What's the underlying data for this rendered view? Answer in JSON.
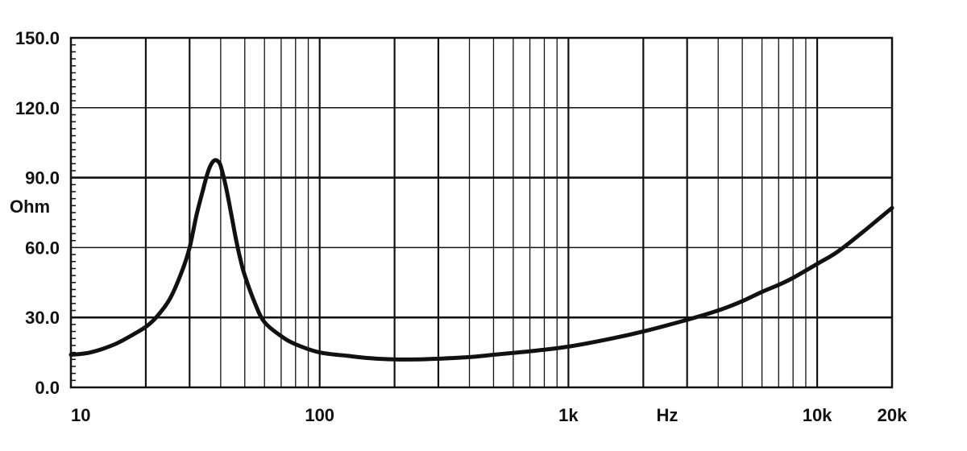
{
  "chart_data": {
    "type": "line",
    "xscale": "log",
    "xlim": [
      10,
      20000
    ],
    "ylim": [
      0,
      150
    ],
    "xlabel": "Hz",
    "ylabel": "Ohm",
    "grid": true,
    "x_ticks": [
      {
        "value": 10,
        "label": "10"
      },
      {
        "value": 100,
        "label": "100"
      },
      {
        "value": 1000,
        "label": "1k"
      },
      {
        "value": 10000,
        "label": "10k"
      },
      {
        "value": 20000,
        "label": "20k"
      }
    ],
    "y_ticks": [
      {
        "value": 0,
        "label": "0.0"
      },
      {
        "value": 30,
        "label": "30.0"
      },
      {
        "value": 60,
        "label": "60.0"
      },
      {
        "value": 90,
        "label": "90.0"
      },
      {
        "value": 120,
        "label": "120.0"
      },
      {
        "value": 150,
        "label": "150.0"
      }
    ],
    "series": [
      {
        "points": [
          [
            10,
            14
          ],
          [
            12,
            15
          ],
          [
            15,
            18.5
          ],
          [
            18,
            23
          ],
          [
            20,
            26
          ],
          [
            22,
            30
          ],
          [
            25,
            38
          ],
          [
            28,
            50
          ],
          [
            30,
            60
          ],
          [
            32,
            74
          ],
          [
            34,
            85
          ],
          [
            35,
            90
          ],
          [
            36,
            94
          ],
          [
            37,
            96.5
          ],
          [
            38,
            97.5
          ],
          [
            39,
            97
          ],
          [
            40,
            95
          ],
          [
            42,
            86
          ],
          [
            44,
            75
          ],
          [
            46,
            64
          ],
          [
            48,
            55
          ],
          [
            50,
            48
          ],
          [
            55,
            36
          ],
          [
            60,
            28
          ],
          [
            70,
            22
          ],
          [
            80,
            18.5
          ],
          [
            100,
            15
          ],
          [
            130,
            13.5
          ],
          [
            160,
            12.5
          ],
          [
            200,
            12
          ],
          [
            250,
            12
          ],
          [
            300,
            12.3
          ],
          [
            400,
            13
          ],
          [
            500,
            14
          ],
          [
            700,
            15.5
          ],
          [
            1000,
            17.5
          ],
          [
            1500,
            21
          ],
          [
            2000,
            24
          ],
          [
            3000,
            29
          ],
          [
            4000,
            33
          ],
          [
            5000,
            37
          ],
          [
            6000,
            41
          ],
          [
            7000,
            44
          ],
          [
            8000,
            47
          ],
          [
            10000,
            53
          ],
          [
            12000,
            58
          ],
          [
            15000,
            66
          ],
          [
            18000,
            73
          ],
          [
            20000,
            77
          ]
        ]
      }
    ]
  }
}
